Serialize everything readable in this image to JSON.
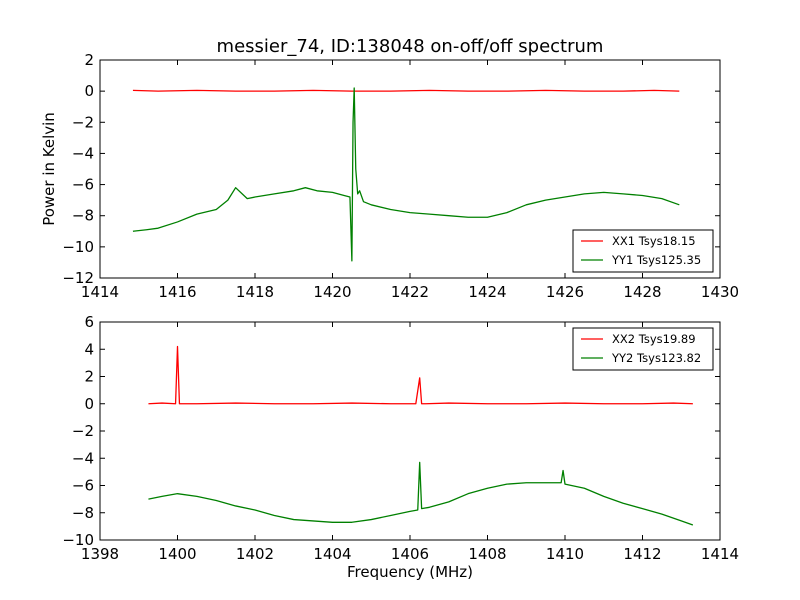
{
  "figure": {
    "title": "messier_74, ID:138048 on-off/off spectrum"
  },
  "chart_data": [
    {
      "type": "line",
      "title": "messier_74, ID:138048 on-off/off spectrum",
      "xlabel": "",
      "ylabel": "Power in Kelvin",
      "xlim": [
        1414,
        1430
      ],
      "ylim": [
        -12,
        2
      ],
      "xticks": [
        1414,
        1416,
        1418,
        1420,
        1422,
        1424,
        1426,
        1428,
        1430
      ],
      "yticks": [
        -12,
        -10,
        -8,
        -6,
        -4,
        -2,
        0,
        2
      ],
      "legend": "lower-right",
      "series": [
        {
          "name": "XX1 Tsys18.15",
          "color": "#ff0000",
          "x": [
            1414.85,
            1415.5,
            1416.5,
            1417.5,
            1418.5,
            1419.5,
            1420.5,
            1421.5,
            1422.5,
            1423.5,
            1424.5,
            1425.5,
            1426.5,
            1427.5,
            1428.3,
            1428.95
          ],
          "y": [
            0.05,
            0.0,
            0.05,
            0.0,
            0.0,
            0.05,
            0.0,
            0.0,
            0.05,
            0.0,
            0.0,
            0.05,
            0.0,
            0.0,
            0.05,
            0.0
          ]
        },
        {
          "name": "YY1 Tsys125.35",
          "color": "#008000",
          "x": [
            1414.85,
            1415.2,
            1415.5,
            1416.0,
            1416.5,
            1417.0,
            1417.3,
            1417.5,
            1417.8,
            1418.0,
            1418.5,
            1419.0,
            1419.3,
            1419.6,
            1420.0,
            1420.3,
            1420.45,
            1420.5,
            1420.53,
            1420.56,
            1420.6,
            1420.65,
            1420.7,
            1420.8,
            1421.0,
            1421.5,
            1422.0,
            1422.5,
            1423.0,
            1423.5,
            1424.0,
            1424.5,
            1425.0,
            1425.5,
            1426.0,
            1426.5,
            1427.0,
            1427.5,
            1428.0,
            1428.5,
            1428.95
          ],
          "y": [
            -9.0,
            -8.9,
            -8.8,
            -8.4,
            -7.9,
            -7.6,
            -7.0,
            -6.2,
            -6.9,
            -6.8,
            -6.6,
            -6.4,
            -6.2,
            -6.4,
            -6.5,
            -6.7,
            -6.8,
            -10.9,
            -2.0,
            0.2,
            -5.0,
            -6.6,
            -6.4,
            -7.1,
            -7.3,
            -7.6,
            -7.8,
            -7.9,
            -8.0,
            -8.1,
            -8.1,
            -7.8,
            -7.3,
            -7.0,
            -6.8,
            -6.6,
            -6.5,
            -6.6,
            -6.7,
            -6.9,
            -7.3
          ]
        }
      ]
    },
    {
      "type": "line",
      "title": "",
      "xlabel": "Frequency (MHz)",
      "ylabel": "",
      "xlim": [
        1398,
        1414
      ],
      "ylim": [
        -10,
        6
      ],
      "xticks": [
        1398,
        1400,
        1402,
        1404,
        1406,
        1408,
        1410,
        1412,
        1414
      ],
      "yticks": [
        -10,
        -8,
        -6,
        -4,
        -2,
        0,
        2,
        4,
        6
      ],
      "legend": "top-right",
      "series": [
        {
          "name": "XX2 Tsys19.89",
          "color": "#ff0000",
          "x": [
            1399.25,
            1399.6,
            1399.95,
            1400.0,
            1400.05,
            1400.5,
            1401.5,
            1402.5,
            1403.5,
            1404.5,
            1405.5,
            1406.15,
            1406.25,
            1406.3,
            1406.4,
            1407.0,
            1408.0,
            1409.0,
            1410.0,
            1411.0,
            1412.0,
            1412.8,
            1413.3
          ],
          "y": [
            0.0,
            0.05,
            0.0,
            4.2,
            0.0,
            0.0,
            0.05,
            0.0,
            0.0,
            0.05,
            0.0,
            0.0,
            1.9,
            0.0,
            0.0,
            0.05,
            0.0,
            0.0,
            0.05,
            0.0,
            0.0,
            0.05,
            0.0
          ]
        },
        {
          "name": "YY2 Tsys123.82",
          "color": "#008000",
          "x": [
            1399.25,
            1399.6,
            1400.0,
            1400.5,
            1401.0,
            1401.5,
            1402.0,
            1402.5,
            1403.0,
            1403.5,
            1404.0,
            1404.5,
            1405.0,
            1405.5,
            1406.0,
            1406.2,
            1406.25,
            1406.3,
            1406.5,
            1407.0,
            1407.5,
            1408.0,
            1408.5,
            1409.0,
            1409.5,
            1409.9,
            1409.95,
            1410.0,
            1410.5,
            1411.0,
            1411.5,
            1412.0,
            1412.5,
            1413.0,
            1413.3
          ],
          "y": [
            -7.0,
            -6.8,
            -6.6,
            -6.8,
            -7.1,
            -7.5,
            -7.8,
            -8.2,
            -8.5,
            -8.6,
            -8.7,
            -8.7,
            -8.5,
            -8.2,
            -7.9,
            -7.8,
            -4.3,
            -7.7,
            -7.6,
            -7.2,
            -6.6,
            -6.2,
            -5.9,
            -5.8,
            -5.8,
            -5.8,
            -4.9,
            -5.9,
            -6.2,
            -6.8,
            -7.3,
            -7.7,
            -8.1,
            -8.6,
            -8.9
          ]
        }
      ]
    }
  ]
}
